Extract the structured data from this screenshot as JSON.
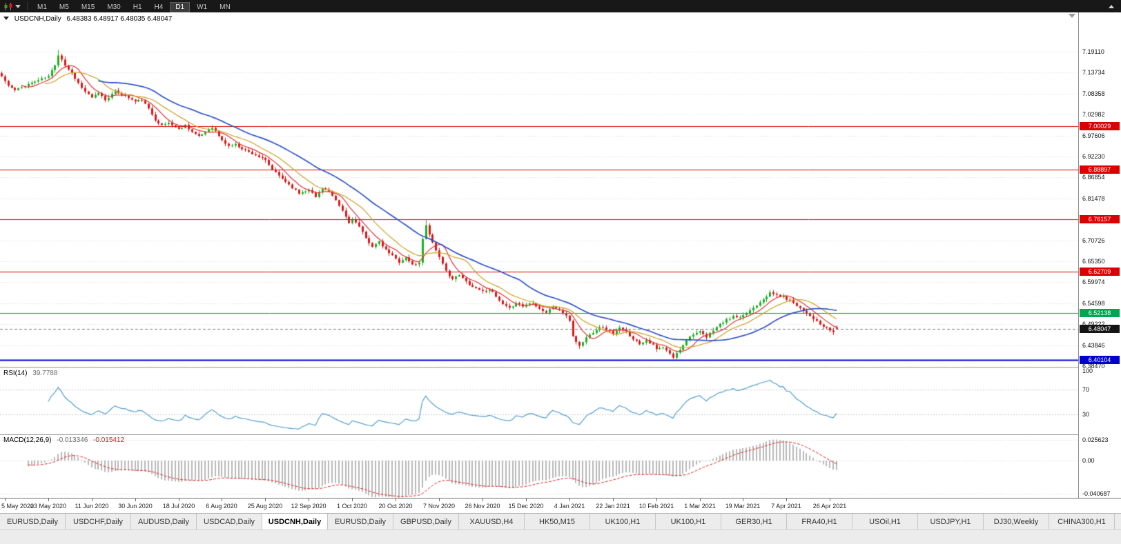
{
  "toolbar": {
    "timeframes": [
      "M1",
      "M5",
      "M15",
      "M30",
      "H1",
      "H4",
      "D1",
      "W1",
      "MN"
    ],
    "active_timeframe": "D1"
  },
  "icons": {
    "toolbar": [
      "candlestick-chart-icon",
      "dropdown-caret-icon",
      "toolbar-overflow-icon"
    ],
    "chart": [
      "collapse-triangle-icon",
      "right-shift-marker-icon"
    ]
  },
  "chart": {
    "symbol_period": "USDCNH,Daily",
    "ohlc": "6.48383 6.48917 6.48035 6.48047"
  },
  "rsi_panel": {
    "title": "RSI(14)",
    "value": "39.7788",
    "axis": [
      "100",
      "70",
      "30"
    ]
  },
  "macd_panel": {
    "title": "MACD(12,26,9)",
    "value_main": "-0.013346",
    "value_signal": "-0.015412",
    "axis": [
      "0.025623",
      "0.00",
      "-0.040687"
    ]
  },
  "tab_bar": {
    "active_index": 4,
    "tabs": [
      "EURUSD,Daily",
      "USDCHF,Daily",
      "AUDUSD,Daily",
      "USDCAD,Daily",
      "USDCNH,Daily",
      "EURUSD,Daily",
      "GBPUSD,Daily",
      "XAUUSD,H4",
      "HK50,M15",
      "UK100,H1",
      "UK100,H1",
      "GER30,H1",
      "FRA40,H1",
      "USOil,H1",
      "USDJPY,H1",
      "DJ30,Weekly",
      "CHINA300,H1",
      "U"
    ]
  },
  "chart_data": {
    "type": "candlestick",
    "symbol": "USDCNH",
    "timeframe": "Daily",
    "title": "USDCNH,Daily",
    "last_candle": {
      "open": 6.48383,
      "high": 6.48917,
      "low": 6.48035,
      "close": 6.48047
    },
    "ylim": [
      6.381,
      7.292
    ],
    "price_axis_ticks": [
      "7.19110",
      "7.13734",
      "7.08358",
      "7.02982",
      "6.97606",
      "6.92230",
      "6.86854",
      "6.81478",
      "6.76102",
      "6.70726",
      "6.65350",
      "6.59974",
      "6.54598",
      "6.49222",
      "6.43846",
      "6.38470"
    ],
    "date_labels": [
      "5 May 2020",
      "23 May 2020",
      "11 Jun 2020",
      "30 Jun 2020",
      "18 Jul 2020",
      "6 Aug 2020",
      "25 Aug 2020",
      "12 Sep 2020",
      "1 Oct 2020",
      "20 Oct 2020",
      "7 Nov 2020",
      "26 Nov 2020",
      "15 Dec 2020",
      "4 Jan 2021",
      "22 Jan 2021",
      "10 Feb 2021",
      "1 Mar 2021",
      "19 Mar 2021",
      "7 Apr 2021",
      "26 Apr 2021"
    ],
    "date_label_indices": [
      1,
      14,
      27,
      40,
      53,
      66,
      79,
      92,
      105,
      118,
      131,
      144,
      157,
      170,
      183,
      196,
      209,
      222,
      235,
      248
    ],
    "candle_count": 251,
    "noise_seed": 11,
    "up_color": "#17b322",
    "down_color": "#e01616",
    "close_anchors": [
      [
        0,
        7.128
      ],
      [
        2,
        7.104
      ],
      [
        4,
        7.092
      ],
      [
        6,
        7.1
      ],
      [
        8,
        7.108
      ],
      [
        11,
        7.118
      ],
      [
        14,
        7.128
      ],
      [
        16,
        7.158
      ],
      [
        17,
        7.183
      ],
      [
        18,
        7.172
      ],
      [
        19,
        7.156
      ],
      [
        21,
        7.136
      ],
      [
        24,
        7.098
      ],
      [
        27,
        7.072
      ],
      [
        29,
        7.086
      ],
      [
        31,
        7.068
      ],
      [
        34,
        7.089
      ],
      [
        37,
        7.078
      ],
      [
        40,
        7.063
      ],
      [
        42,
        7.068
      ],
      [
        44,
        7.044
      ],
      [
        46,
        7.017
      ],
      [
        48,
        7.002
      ],
      [
        50,
        7.009
      ],
      [
        53,
        6.992
      ],
      [
        55,
        7.003
      ],
      [
        57,
        6.986
      ],
      [
        59,
        6.973
      ],
      [
        61,
        6.986
      ],
      [
        63,
        6.998
      ],
      [
        65,
        6.975
      ],
      [
        66,
        6.963
      ],
      [
        68,
        6.949
      ],
      [
        70,
        6.953
      ],
      [
        73,
        6.938
      ],
      [
        76,
        6.926
      ],
      [
        79,
        6.912
      ],
      [
        81,
        6.888
      ],
      [
        83,
        6.873
      ],
      [
        85,
        6.858
      ],
      [
        87,
        6.843
      ],
      [
        89,
        6.828
      ],
      [
        92,
        6.838
      ],
      [
        94,
        6.818
      ],
      [
        96,
        6.843
      ],
      [
        98,
        6.832
      ],
      [
        100,
        6.808
      ],
      [
        102,
        6.783
      ],
      [
        104,
        6.752
      ],
      [
        105,
        6.763
      ],
      [
        107,
        6.742
      ],
      [
        109,
        6.712
      ],
      [
        111,
        6.692
      ],
      [
        113,
        6.703
      ],
      [
        115,
        6.682
      ],
      [
        117,
        6.668
      ],
      [
        119,
        6.652
      ],
      [
        121,
        6.663
      ],
      [
        123,
        6.645
      ],
      [
        125,
        6.649
      ],
      [
        126,
        6.712
      ],
      [
        127,
        6.748
      ],
      [
        128,
        6.722
      ],
      [
        130,
        6.683
      ],
      [
        131,
        6.663
      ],
      [
        133,
        6.628
      ],
      [
        135,
        6.608
      ],
      [
        137,
        6.618
      ],
      [
        139,
        6.602
      ],
      [
        141,
        6.588
      ],
      [
        143,
        6.582
      ],
      [
        144,
        6.576
      ],
      [
        146,
        6.583
      ],
      [
        148,
        6.562
      ],
      [
        150,
        6.542
      ],
      [
        152,
        6.532
      ],
      [
        154,
        6.548
      ],
      [
        156,
        6.538
      ],
      [
        157,
        6.543
      ],
      [
        159,
        6.548
      ],
      [
        161,
        6.532
      ],
      [
        163,
        6.522
      ],
      [
        165,
        6.538
      ],
      [
        167,
        6.528
      ],
      [
        169,
        6.512
      ],
      [
        170,
        6.502
      ],
      [
        171,
        6.462
      ],
      [
        172,
        6.448
      ],
      [
        173,
        6.436
      ],
      [
        175,
        6.458
      ],
      [
        177,
        6.472
      ],
      [
        179,
        6.486
      ],
      [
        181,
        6.478
      ],
      [
        183,
        6.468
      ],
      [
        185,
        6.482
      ],
      [
        187,
        6.472
      ],
      [
        189,
        6.455
      ],
      [
        191,
        6.442
      ],
      [
        193,
        6.452
      ],
      [
        195,
        6.438
      ],
      [
        196,
        6.428
      ],
      [
        198,
        6.432
      ],
      [
        200,
        6.416
      ],
      [
        201,
        6.407
      ],
      [
        203,
        6.428
      ],
      [
        205,
        6.452
      ],
      [
        207,
        6.468
      ],
      [
        209,
        6.472
      ],
      [
        211,
        6.458
      ],
      [
        213,
        6.478
      ],
      [
        215,
        6.492
      ],
      [
        217,
        6.503
      ],
      [
        219,
        6.512
      ],
      [
        221,
        6.508
      ],
      [
        222,
        6.513
      ],
      [
        224,
        6.528
      ],
      [
        226,
        6.542
      ],
      [
        228,
        6.558
      ],
      [
        230,
        6.572
      ],
      [
        232,
        6.567
      ],
      [
        234,
        6.561
      ],
      [
        235,
        6.557
      ],
      [
        237,
        6.548
      ],
      [
        239,
        6.534
      ],
      [
        241,
        6.521
      ],
      [
        243,
        6.507
      ],
      [
        245,
        6.491
      ],
      [
        247,
        6.481
      ],
      [
        248,
        6.477
      ],
      [
        249,
        6.472
      ],
      [
        250,
        6.48047
      ]
    ],
    "wick_high_overrides": [
      [
        17,
        7.196
      ],
      [
        127,
        6.76
      ],
      [
        230,
        6.58
      ]
    ],
    "wick_low_overrides": [
      [
        173,
        6.4295
      ],
      [
        201,
        6.403
      ]
    ],
    "moving_averages": [
      {
        "period": 7,
        "color": "#e03030",
        "width": 1.2
      },
      {
        "period": 14,
        "color": "#c8a020",
        "width": 1.2
      },
      {
        "period": 30,
        "color": "#2b50c8",
        "width": 1.7
      }
    ],
    "horizontal_levels": [
      {
        "price": 7.00029,
        "label": "7.00029",
        "color": "#dd0000",
        "width": 1
      },
      {
        "price": 6.88897,
        "label": "6.88897",
        "color": "#dd0000",
        "width": 1
      },
      {
        "price": 6.76157,
        "label": "6.76157",
        "color": "#dd0000",
        "width": 1
      },
      {
        "price": 6.62709,
        "label": "6.62709",
        "color": "#dd0000",
        "width": 1
      },
      {
        "price": 6.52138,
        "label": "6.52138",
        "color": "#00a651",
        "width": 1
      },
      {
        "price": 6.40104,
        "label": "6.40104",
        "color": "#0000cc",
        "width": 2
      }
    ],
    "current_price": {
      "value": 6.48047,
      "label": "6.48047",
      "badge_color": "#141414"
    },
    "rsi": {
      "period": 14,
      "levels": [
        70,
        30
      ],
      "color": "#4f9ece",
      "last_value": 39.7788
    },
    "macd": {
      "fast": 12,
      "slow": 26,
      "signal": 9,
      "axis_max": 0.025623,
      "axis_min": -0.040687,
      "histogram_color": "#b8b8b8",
      "signal_color": "#dd2222",
      "last_main": -0.013346,
      "last_signal": -0.015412
    }
  }
}
